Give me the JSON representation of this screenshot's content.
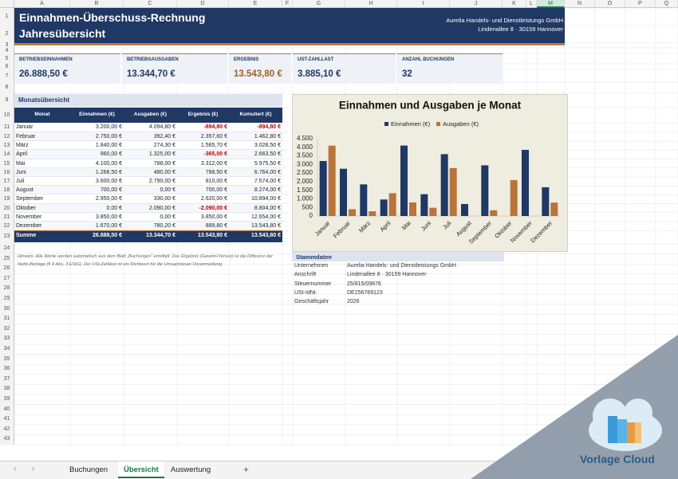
{
  "sheet": {
    "columns": [
      "A",
      "B",
      "C",
      "D",
      "E",
      "F",
      "G",
      "H",
      "I",
      "J",
      "K",
      "L",
      "M",
      "N",
      "O",
      "P",
      "Q"
    ],
    "rows": [
      1,
      2,
      3,
      4,
      5,
      6,
      7,
      8,
      9,
      10,
      11,
      12,
      13,
      14,
      15,
      16,
      17,
      18,
      19,
      20,
      21,
      22,
      23,
      24,
      25,
      26,
      27,
      28,
      29,
      30,
      31,
      32,
      33,
      34,
      35,
      36,
      37,
      38,
      39,
      40,
      41,
      42,
      43
    ]
  },
  "header": {
    "title": "Einnahmen-Überschuss-Rechnung",
    "subtitle": "Jahresübersicht",
    "company": "Aurelia Handels- und Dienstleistungs GmbH",
    "address": "Lindenallee 8 · 30159 Hannover"
  },
  "kpis": [
    {
      "label": "BETRIEBSEINNAHMEN",
      "value": "26.888,50 €"
    },
    {
      "label": "BETRIEBSAUSGABEN",
      "value": "13.344,70 €"
    },
    {
      "label": "ERGEBNIS",
      "value": "13.543,80 €"
    },
    {
      "label": "UST-ZAHLLAST",
      "value": "3.885,10 €"
    },
    {
      "label": "ANZAHL BUCHUNGEN",
      "value": "32"
    }
  ],
  "table": {
    "title": "Monatsübersicht",
    "columns": [
      "Monat",
      "Einnahmen (€)",
      "Ausgaben (€)",
      "Ergebnis (€)",
      "Kumuliert (€)"
    ],
    "rows": [
      [
        "Januar",
        "3.200,00 €",
        "4.094,80 €",
        "-894,80 €",
        "-894,80 €"
      ],
      [
        "Februar",
        "2.750,00 €",
        "392,40 €",
        "2.357,60 €",
        "1.462,80 €"
      ],
      [
        "März",
        "1.840,00 €",
        "274,30 €",
        "1.565,70 €",
        "3.028,50 €"
      ],
      [
        "April",
        "960,00 €",
        "1.325,00 €",
        "-365,00 €",
        "2.663,50 €"
      ],
      [
        "Mai",
        "4.100,00 €",
        "788,00 €",
        "3.312,00 €",
        "5.975,50 €"
      ],
      [
        "Juni",
        "1.268,50 €",
        "480,00 €",
        "788,50 €",
        "6.764,00 €"
      ],
      [
        "Juli",
        "3.600,00 €",
        "2.790,00 €",
        "810,00 €",
        "7.574,00 €"
      ],
      [
        "August",
        "700,00 €",
        "0,00 €",
        "700,00 €",
        "8.274,00 €"
      ],
      [
        "September",
        "2.950,00 €",
        "330,00 €",
        "2.620,00 €",
        "10.894,00 €"
      ],
      [
        "Oktober",
        "0,00 €",
        "2.090,00 €",
        "-2.090,00 €",
        "8.804,00 €"
      ],
      [
        "November",
        "3.850,00 €",
        "0,00 €",
        "3.850,00 €",
        "12.654,00 €"
      ],
      [
        "Dezember",
        "1.670,00 €",
        "780,20 €",
        "889,80 €",
        "13.543,80 €"
      ]
    ],
    "total": [
      "Summe",
      "26.888,50 €",
      "13.344,70 €",
      "13.543,80 €",
      "13.543,80 €"
    ]
  },
  "note": "Hinweis: Alle Werte werden automatisch aus dem Blatt „Buchungen“ ermittelt. Das Ergebnis (Gewinn/Verlust) ist die Differenz der Netto-Beträge (§ 4 Abs. 3 EStG). Die USt-Zahllast ist ein Richtwert für die Umsatzsteuer-Voranmeldung.",
  "stammdaten": {
    "title": "Stammdaten",
    "rows": [
      [
        "Unternehmen",
        "Aurelia Handels- und Dienstleistungs GmbH"
      ],
      [
        "Anschrift",
        "Lindenallee 8 · 30159 Hannover"
      ],
      [
        "Steuernummer",
        "25/815/09876"
      ],
      [
        "USt-IdNr.",
        "DE256789123"
      ],
      [
        "Geschäftsjahr",
        "2026"
      ]
    ]
  },
  "tabs": [
    "Buchungen",
    "Übersicht",
    "Auswertung"
  ],
  "active_tab": 1,
  "brand": "Vorlage Cloud",
  "chart_data": {
    "type": "bar",
    "title": "Einnahmen und Ausgaben je Monat",
    "categories": [
      "Januar",
      "Februar",
      "März",
      "April",
      "Mai",
      "Juni",
      "Juli",
      "August",
      "September",
      "Oktober",
      "November",
      "Dezember"
    ],
    "series": [
      {
        "name": "Einnahmen (€)",
        "color": "#1f3864",
        "values": [
          3200,
          2750,
          1840,
          960,
          4100,
          1268.5,
          3600,
          700,
          2950,
          0,
          3850,
          1670
        ]
      },
      {
        "name": "Ausgaben (€)",
        "color": "#b8743a",
        "values": [
          4094.8,
          392.4,
          274.3,
          1325,
          788,
          480,
          2790,
          0,
          330,
          2090,
          0,
          780.2
        ]
      }
    ],
    "ylim": [
      0,
      4500
    ],
    "yticks": [
      0,
      {
        "value": 500,
        "label": "500"
      },
      {
        "value": 1000,
        "label": "1.000"
      },
      {
        "value": 1500,
        "label": "1.500"
      },
      {
        "value": 2000,
        "label": "2.000"
      },
      {
        "value": 2500,
        "label": "2.500"
      },
      {
        "value": 3000,
        "label": "3.000"
      },
      {
        "value": 3500,
        "label": "3.500"
      },
      {
        "value": 4000,
        "label": "4.000"
      },
      {
        "value": 4500,
        "label": "4.500"
      }
    ],
    "legend": "top"
  }
}
